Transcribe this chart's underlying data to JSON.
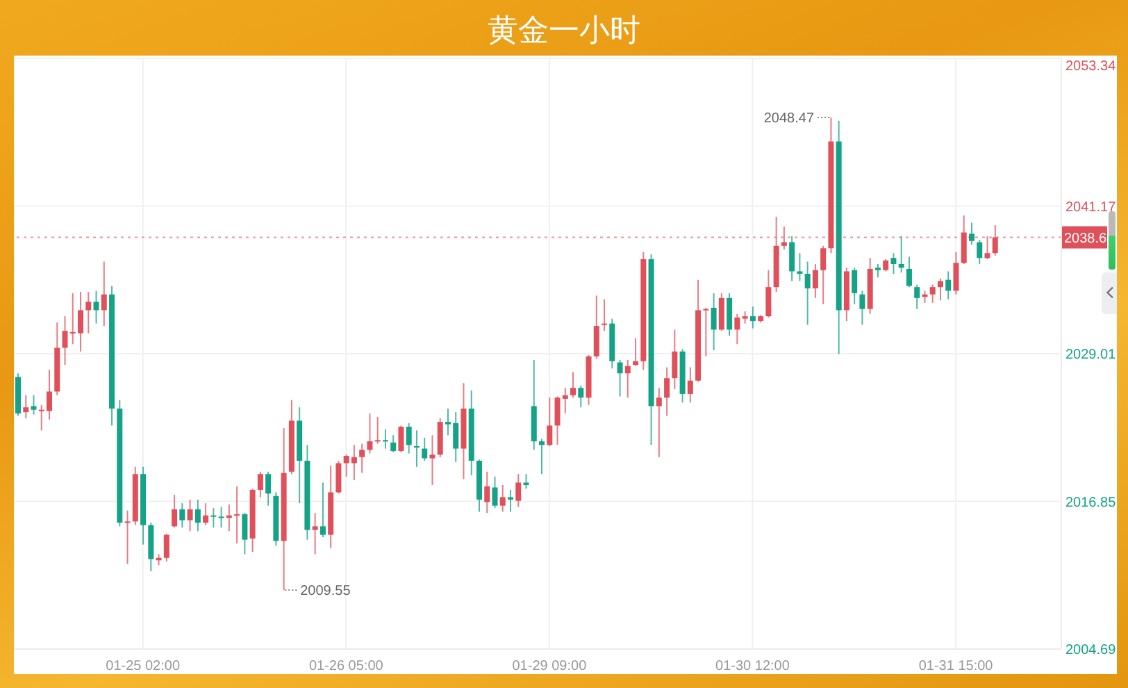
{
  "chart_data": {
    "type": "candlestick",
    "title": "黄金一小时",
    "categories": [
      null,
      null,
      null,
      null,
      null,
      null,
      null,
      null,
      null,
      null,
      null,
      null,
      null,
      null,
      null,
      null,
      "01-25 02:00",
      null,
      null,
      null,
      null,
      null,
      null,
      null,
      null,
      null,
      null,
      null,
      null,
      null,
      null,
      null,
      null,
      null,
      null,
      null,
      null,
      null,
      null,
      null,
      null,
      null,
      "01-26 05:00",
      null,
      null,
      null,
      null,
      null,
      null,
      null,
      null,
      null,
      null,
      null,
      null,
      null,
      null,
      null,
      null,
      null,
      null,
      null,
      null,
      null,
      null,
      null,
      null,
      null,
      "01-29 09:00",
      null,
      null,
      null,
      null,
      null,
      null,
      null,
      null,
      null,
      null,
      null,
      null,
      null,
      null,
      null,
      null,
      null,
      null,
      null,
      null,
      null,
      null,
      null,
      null,
      null,
      "01-30 12:00",
      null,
      null,
      null,
      null,
      null,
      null,
      null,
      null,
      null,
      null,
      null,
      null,
      null,
      null,
      null,
      null,
      null,
      null,
      null,
      null,
      null,
      null,
      null,
      null,
      null,
      "01-31 15:00",
      null,
      null,
      null,
      null,
      null
    ],
    "ohlc": [
      [
        2027.1,
        2027.4,
        2023.9,
        2024.1
      ],
      [
        2024.2,
        2025.6,
        2023.7,
        2024.6
      ],
      [
        2024.7,
        2025.6,
        2024.0,
        2024.4
      ],
      [
        2024.3,
        2024.8,
        2022.7,
        2024.4
      ],
      [
        2024.3,
        2027.7,
        2023.6,
        2025.9
      ],
      [
        2025.9,
        2031.6,
        2025.6,
        2029.5
      ],
      [
        2029.5,
        2032.1,
        2028.1,
        2030.9
      ],
      [
        2030.7,
        2034.0,
        2029.8,
        2030.8
      ],
      [
        2030.7,
        2034.1,
        2029.2,
        2032.6
      ],
      [
        2032.6,
        2034.1,
        2030.7,
        2033.3
      ],
      [
        2033.3,
        2034.2,
        2031.5,
        2032.6
      ],
      [
        2032.6,
        2036.6,
        2031.3,
        2033.9
      ],
      [
        2033.9,
        2034.6,
        2023.1,
        2024.5
      ],
      [
        2024.5,
        2025.2,
        2014.8,
        2015.1
      ],
      [
        2015.1,
        2016.1,
        2011.7,
        2015.2
      ],
      [
        2015.2,
        2019.7,
        2014.9,
        2019.1
      ],
      [
        2019.1,
        2019.7,
        2013.3,
        2014.9
      ],
      [
        2014.9,
        2015.1,
        2011.1,
        2012.1
      ],
      [
        2012.0,
        2012.5,
        2011.6,
        2012.2
      ],
      [
        2012.2,
        2014.2,
        2011.9,
        2014.1
      ],
      [
        2014.8,
        2017.4,
        2014.7,
        2016.2
      ],
      [
        2016.2,
        2016.7,
        2014.7,
        2015.3
      ],
      [
        2015.3,
        2017.0,
        2014.4,
        2016.2
      ],
      [
        2016.2,
        2017.0,
        2014.4,
        2015.1
      ],
      [
        2015.1,
        2016.7,
        2014.9,
        2015.7
      ],
      [
        2015.7,
        2016.3,
        2014.7,
        2015.6
      ],
      [
        2015.6,
        2016.4,
        2014.7,
        2015.5
      ],
      [
        2015.5,
        2016.6,
        2014.4,
        2015.7
      ],
      [
        2015.7,
        2018.1,
        2013.4,
        2015.8
      ],
      [
        2015.8,
        2015.9,
        2012.5,
        2013.7
      ],
      [
        2013.8,
        2017.9,
        2012.7,
        2017.8
      ],
      [
        2017.8,
        2019.3,
        2017.2,
        2019.1
      ],
      [
        2019.1,
        2019.3,
        2016.5,
        2017.5
      ],
      [
        2017.3,
        2017.6,
        2013.2,
        2013.6
      ],
      [
        2013.6,
        2022.9,
        2009.55,
        2019.2
      ],
      [
        2019.3,
        2025.2,
        2019.1,
        2023.5
      ],
      [
        2023.5,
        2024.6,
        2016.7,
        2020.2
      ],
      [
        2020.2,
        2021.5,
        2013.7,
        2014.5
      ],
      [
        2014.5,
        2015.9,
        2012.5,
        2014.8
      ],
      [
        2014.8,
        2018.4,
        2013.9,
        2014.1
      ],
      [
        2014.1,
        2019.8,
        2013.0,
        2017.6
      ],
      [
        2017.6,
        2020.2,
        2017.5,
        2020.0
      ],
      [
        2020.0,
        2020.7,
        2018.9,
        2020.6
      ],
      [
        2020.0,
        2021.5,
        2018.6,
        2020.5
      ],
      [
        2020.5,
        2021.6,
        2019.2,
        2021.1
      ],
      [
        2021.1,
        2024.1,
        2020.8,
        2021.8
      ],
      [
        2021.8,
        2023.8,
        2021.6,
        2021.9
      ],
      [
        2021.9,
        2022.8,
        2021.2,
        2021.8
      ],
      [
        2021.7,
        2022.3,
        2020.9,
        2021.0
      ],
      [
        2021.0,
        2023.1,
        2020.9,
        2023.0
      ],
      [
        2023.0,
        2023.3,
        2020.8,
        2021.5
      ],
      [
        2021.4,
        2022.7,
        2019.7,
        2021.3
      ],
      [
        2021.2,
        2022.1,
        2020.2,
        2020.4
      ],
      [
        2020.4,
        2022.3,
        2018.2,
        2020.7
      ],
      [
        2020.7,
        2023.7,
        2020.5,
        2023.4
      ],
      [
        2023.4,
        2024.5,
        2022.3,
        2023.2
      ],
      [
        2023.3,
        2024.2,
        2020.1,
        2021.2
      ],
      [
        2021.2,
        2026.6,
        2018.7,
        2024.5
      ],
      [
        2024.5,
        2026.0,
        2019.0,
        2020.2
      ],
      [
        2020.2,
        2020.3,
        2016.0,
        2017.0
      ],
      [
        2016.8,
        2019.3,
        2015.9,
        2018.1
      ],
      [
        2018.0,
        2018.9,
        2016.3,
        2016.5
      ],
      [
        2016.5,
        2018.2,
        2016.0,
        2017.2
      ],
      [
        2017.2,
        2017.8,
        2016.0,
        2017.0
      ],
      [
        2016.9,
        2019.1,
        2016.4,
        2018.4
      ],
      [
        2018.4,
        2019.1,
        2017.9,
        2018.2
      ],
      [
        2024.7,
        2028.5,
        2021.1,
        2021.8
      ],
      [
        2021.8,
        2022.0,
        2019.1,
        2021.5
      ],
      [
        2021.5,
        2025.4,
        2021.4,
        2023.1
      ],
      [
        2023.1,
        2025.5,
        2021.5,
        2025.4
      ],
      [
        2025.3,
        2026.2,
        2024.1,
        2025.6
      ],
      [
        2025.6,
        2027.5,
        2025.4,
        2026.2
      ],
      [
        2026.2,
        2026.4,
        2024.6,
        2025.4
      ],
      [
        2025.4,
        2028.9,
        2024.8,
        2028.8
      ],
      [
        2028.8,
        2033.8,
        2028.6,
        2031.3
      ],
      [
        2031.4,
        2033.5,
        2030.9,
        2031.5
      ],
      [
        2031.5,
        2031.9,
        2027.8,
        2028.4
      ],
      [
        2028.3,
        2028.5,
        2025.5,
        2027.4
      ],
      [
        2027.4,
        2028.5,
        2025.4,
        2028.0
      ],
      [
        2028.1,
        2030.3,
        2028.0,
        2028.4
      ],
      [
        2028.4,
        2037.4,
        2027.7,
        2036.8
      ],
      [
        2036.8,
        2037.2,
        2021.5,
        2024.7
      ],
      [
        2024.7,
        2026.2,
        2020.5,
        2025.4
      ],
      [
        2025.4,
        2027.9,
        2023.9,
        2027.0
      ],
      [
        2027.0,
        2031.0,
        2026.1,
        2029.2
      ],
      [
        2029.2,
        2029.4,
        2025.0,
        2025.7
      ],
      [
        2025.7,
        2027.9,
        2025.0,
        2026.8
      ],
      [
        2026.8,
        2035.1,
        2026.7,
        2032.6
      ],
      [
        2032.6,
        2032.8,
        2028.8,
        2032.7
      ],
      [
        2032.8,
        2034.0,
        2029.3,
        2031.0
      ],
      [
        2031.0,
        2034.0,
        2030.9,
        2033.6
      ],
      [
        2033.6,
        2034.0,
        2030.5,
        2031.0
      ],
      [
        2031.0,
        2032.3,
        2029.8,
        2032.0
      ],
      [
        2031.9,
        2032.5,
        2031.5,
        2032.1
      ],
      [
        2032.1,
        2032.9,
        2031.1,
        2031.7
      ],
      [
        2031.7,
        2032.2,
        2031.6,
        2032.1
      ],
      [
        2032.1,
        2035.9,
        2032.0,
        2034.5
      ],
      [
        2034.5,
        2040.3,
        2034.1,
        2037.9
      ],
      [
        2037.9,
        2039.5,
        2037.6,
        2038.2
      ],
      [
        2038.2,
        2038.7,
        2035.0,
        2035.8
      ],
      [
        2035.8,
        2037.3,
        2035.0,
        2035.6
      ],
      [
        2035.6,
        2036.6,
        2031.4,
        2034.4
      ],
      [
        2034.4,
        2036.4,
        2033.6,
        2035.9
      ],
      [
        2035.9,
        2037.9,
        2033.1,
        2037.7
      ],
      [
        2037.7,
        2048.47,
        2037.3,
        2046.5
      ],
      [
        2046.5,
        2048.2,
        2029.0,
        2032.6
      ],
      [
        2032.6,
        2036.1,
        2031.7,
        2035.8
      ],
      [
        2035.9,
        2036.1,
        2033.1,
        2034.0
      ],
      [
        2033.9,
        2034.2,
        2031.4,
        2032.7
      ],
      [
        2032.7,
        2036.9,
        2032.3,
        2036.0
      ],
      [
        2036.1,
        2036.4,
        2035.3,
        2035.9
      ],
      [
        2035.9,
        2036.8,
        2035.8,
        2036.7
      ],
      [
        2036.9,
        2037.3,
        2035.6,
        2036.4
      ],
      [
        2036.4,
        2038.7,
        2035.7,
        2036.1
      ],
      [
        2036.0,
        2037.0,
        2034.5,
        2034.6
      ],
      [
        2034.5,
        2034.7,
        2032.7,
        2033.6
      ],
      [
        2033.7,
        2034.2,
        2033.2,
        2033.9
      ],
      [
        2033.9,
        2034.7,
        2033.2,
        2034.5
      ],
      [
        2034.5,
        2035.2,
        2033.4,
        2035.0
      ],
      [
        2035.1,
        2035.8,
        2033.5,
        2034.2
      ],
      [
        2034.2,
        2037.4,
        2033.9,
        2036.5
      ],
      [
        2036.5,
        2040.4,
        2036.4,
        2039.0
      ],
      [
        2038.9,
        2039.8,
        2038.0,
        2038.3
      ],
      [
        2038.2,
        2038.4,
        2036.4,
        2036.9
      ],
      [
        2036.9,
        2038.7,
        2036.8,
        2037.3
      ],
      [
        2037.3,
        2039.6,
        2037.1,
        2038.6
      ]
    ],
    "colors": [
      "#14a386",
      "#e0505b",
      "#14a386",
      "#e0505b",
      "#e0505b",
      "#e0505b",
      "#e0505b",
      "#e0505b",
      "#e0505b",
      "#e0505b",
      "#14a386",
      "#e0505b",
      "#14a386",
      "#14a386",
      "#e0505b",
      "#e0505b",
      "#14a386",
      "#14a386",
      "#e0505b",
      "#e0505b",
      "#e0505b",
      "#14a386",
      "#e0505b",
      "#14a386",
      "#e0505b",
      "#14a386",
      "#14a386",
      "#e0505b",
      "#e0505b",
      "#14a386",
      "#e0505b",
      "#e0505b",
      "#14a386",
      "#14a386",
      "#e0505b",
      "#e0505b",
      "#14a386",
      "#14a386",
      "#e0505b",
      "#14a386",
      "#e0505b",
      "#e0505b",
      "#e0505b",
      "#e0505b",
      "#e0505b",
      "#e0505b",
      "#e0505b",
      "#14a386",
      "#14a386",
      "#e0505b",
      "#14a386",
      "#14a386",
      "#14a386",
      "#e0505b",
      "#e0505b",
      "#14a386",
      "#14a386",
      "#e0505b",
      "#14a386",
      "#14a386",
      "#e0505b",
      "#14a386",
      "#e0505b",
      "#14a386",
      "#e0505b",
      "#14a386",
      "#14a386",
      "#14a386",
      "#e0505b",
      "#e0505b",
      "#e0505b",
      "#e0505b",
      "#14a386",
      "#e0505b",
      "#e0505b",
      "#e0505b",
      "#14a386",
      "#14a386",
      "#e0505b",
      "#e0505b",
      "#e0505b",
      "#14a386",
      "#e0505b",
      "#e0505b",
      "#e0505b",
      "#14a386",
      "#e0505b",
      "#e0505b",
      "#e0505b",
      "#14a386",
      "#e0505b",
      "#14a386",
      "#e0505b",
      "#e0505b",
      "#14a386",
      "#e0505b",
      "#e0505b",
      "#e0505b",
      "#e0505b",
      "#14a386",
      "#14a386",
      "#14a386",
      "#e0505b",
      "#e0505b",
      "#e0505b",
      "#14a386",
      "#e0505b",
      "#14a386",
      "#14a386",
      "#e0505b",
      "#14a386",
      "#e0505b",
      "#14a386",
      "#14a386",
      "#14a386",
      "#14a386",
      "#e0505b",
      "#e0505b",
      "#e0505b",
      "#14a386",
      "#e0505b",
      "#e0505b",
      "#14a386",
      "#14a386",
      "#e0505b",
      "#e0505b"
    ],
    "ylim": [
      2004.69,
      2053.34
    ],
    "yticks": [
      2004.69,
      2016.85,
      2029.01,
      2041.17,
      2053.34
    ],
    "grid": true,
    "ref_lines": [
      {
        "axis": "y",
        "value": 2038.6,
        "label": "2038.6",
        "color": "#e0505b",
        "line_style": "dotted"
      }
    ],
    "annotations": [
      "2048.47",
      "2009.55"
    ]
  }
}
